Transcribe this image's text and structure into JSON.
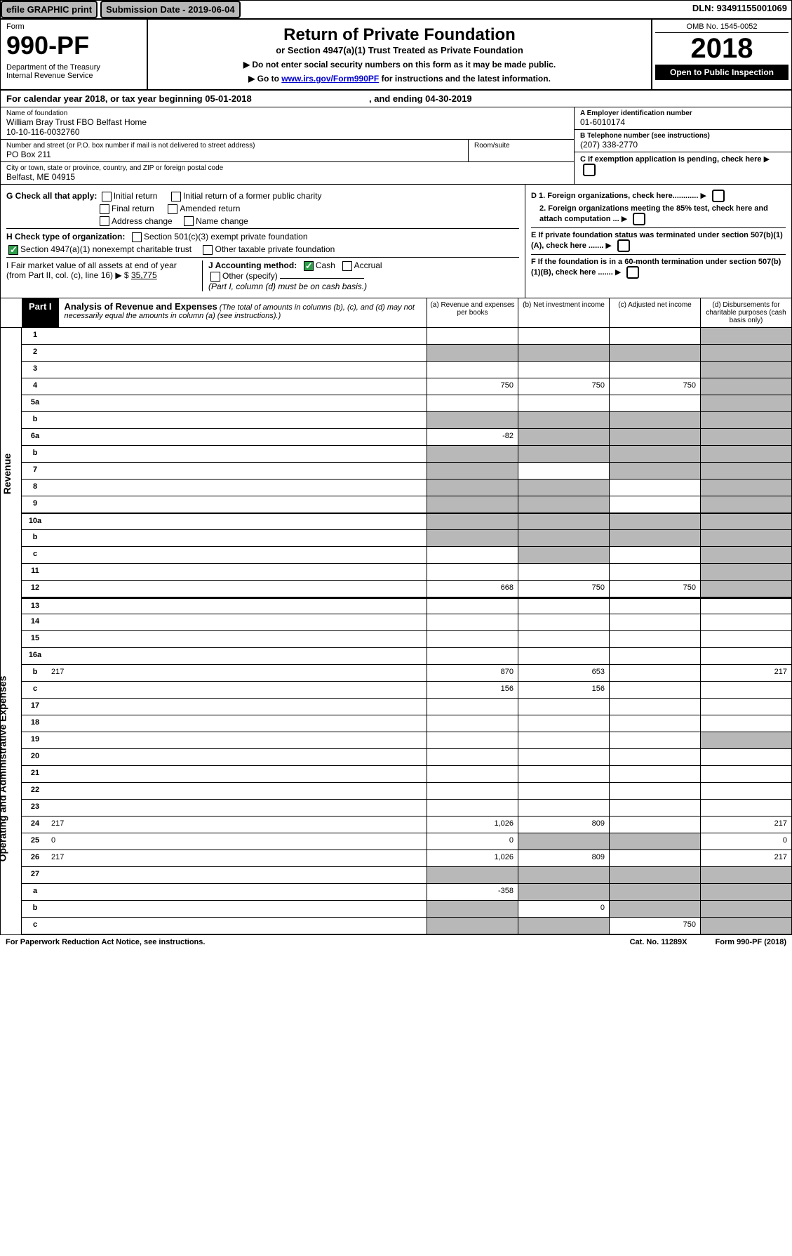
{
  "topbar": {
    "efile": "efile GRAPHIC print",
    "subdate_label": "Submission Date - 2019-06-04",
    "dln": "DLN: 93491155001069"
  },
  "header": {
    "form_label": "Form",
    "form_no": "990-PF",
    "dept": "Department of the Treasury\nInternal Revenue Service",
    "title": "Return of Private Foundation",
    "subtitle": "or Section 4947(a)(1) Trust Treated as Private Foundation",
    "instr1": "▶ Do not enter social security numbers on this form as it may be made public.",
    "instr2_pre": "▶ Go to ",
    "instr2_link": "www.irs.gov/Form990PF",
    "instr2_post": " for instructions and the latest information.",
    "omb": "OMB No. 1545-0052",
    "year": "2018",
    "open": "Open to Public Inspection"
  },
  "calrow": {
    "text_pre": "For calendar year 2018, or tax year beginning ",
    "begin": "05-01-2018",
    "text_mid": ", and ending ",
    "end": "04-30-2019"
  },
  "entity": {
    "name_lbl": "Name of foundation",
    "name": "William Bray Trust FBO Belfast Home\n10-10-116-0032760",
    "addr_lbl": "Number and street (or P.O. box number if mail is not delivered to street address)",
    "addr": "PO Box 211",
    "room_lbl": "Room/suite",
    "city_lbl": "City or town, state or province, country, and ZIP or foreign postal code",
    "city": "Belfast, ME  04915",
    "ein_lbl": "A Employer identification number",
    "ein": "01-6010174",
    "tel_lbl": "B Telephone number (see instructions)",
    "tel": "(207) 338-2770",
    "c_lbl": "C If exemption application is pending, check here"
  },
  "checks": {
    "g_lbl": "G Check all that apply:",
    "g_opts": [
      "Initial return",
      "Initial return of a former public charity",
      "Final return",
      "Amended return",
      "Address change",
      "Name change"
    ],
    "h_lbl": "H Check type of organization:",
    "h_opt1": "Section 501(c)(3) exempt private foundation",
    "h_opt2": "Section 4947(a)(1) nonexempt charitable trust",
    "h_opt3": "Other taxable private foundation",
    "i_lbl": "I Fair market value of all assets at end of year (from Part II, col. (c), line 16) ▶ $",
    "i_val": "35,775",
    "j_lbl": "J Accounting method:",
    "j_cash": "Cash",
    "j_accr": "Accrual",
    "j_other": "Other (specify)",
    "j_note": "(Part I, column (d) must be on cash basis.)",
    "d1": "D 1. Foreign organizations, check here............",
    "d2": "2. Foreign organizations meeting the 85% test, check here and attach computation ...",
    "e": "E  If private foundation status was terminated under section 507(b)(1)(A), check here .......",
    "f": "F  If the foundation is in a 60-month termination under section 507(b)(1)(B), check here .......",
    "arrow": "▶"
  },
  "part1": {
    "label": "Part I",
    "title": "Analysis of Revenue and Expenses",
    "subtitle": "(The total of amounts in columns (b), (c), and (d) may not necessarily equal the amounts in column (a) (see instructions).)",
    "cols": {
      "a": "(a)   Revenue and expenses per books",
      "b": "(b)  Net investment income",
      "c": "(c)  Adjusted net income",
      "d": "(d)  Disbursements for charitable purposes (cash basis only)"
    }
  },
  "sidelabels": {
    "rev": "Revenue",
    "exp": "Operating and Administrative Expenses"
  },
  "rows": [
    {
      "n": "1",
      "d": "",
      "a": "",
      "b": "",
      "c": "",
      "grey": [
        "d"
      ]
    },
    {
      "n": "2",
      "d": "",
      "a": "",
      "b": "",
      "c": "",
      "grey": [
        "a",
        "b",
        "c",
        "d"
      ]
    },
    {
      "n": "3",
      "d": "",
      "a": "",
      "b": "",
      "c": "",
      "grey": [
        "d"
      ]
    },
    {
      "n": "4",
      "d": "",
      "a": "750",
      "b": "750",
      "c": "750",
      "grey": [
        "d"
      ]
    },
    {
      "n": "5a",
      "d": "",
      "a": "",
      "b": "",
      "c": "",
      "grey": [
        "d"
      ]
    },
    {
      "n": "b",
      "d": "",
      "a": "",
      "b": "",
      "c": "",
      "grey": [
        "a",
        "b",
        "c",
        "d"
      ]
    },
    {
      "n": "6a",
      "d": "",
      "a": "-82",
      "b": "",
      "c": "",
      "grey": [
        "b",
        "c",
        "d"
      ]
    },
    {
      "n": "b",
      "d": "",
      "a": "",
      "b": "",
      "c": "",
      "grey": [
        "a",
        "b",
        "c",
        "d"
      ]
    },
    {
      "n": "7",
      "d": "",
      "a": "",
      "b": "",
      "c": "",
      "grey": [
        "a",
        "c",
        "d"
      ]
    },
    {
      "n": "8",
      "d": "",
      "a": "",
      "b": "",
      "c": "",
      "grey": [
        "a",
        "b",
        "d"
      ]
    },
    {
      "n": "9",
      "d": "",
      "a": "",
      "b": "",
      "c": "",
      "grey": [
        "a",
        "b",
        "d"
      ]
    },
    {
      "n": "10a",
      "d": "",
      "a": "",
      "b": "",
      "c": "",
      "grey": [
        "a",
        "b",
        "c",
        "d"
      ]
    },
    {
      "n": "b",
      "d": "",
      "a": "",
      "b": "",
      "c": "",
      "grey": [
        "a",
        "b",
        "c",
        "d"
      ]
    },
    {
      "n": "c",
      "d": "",
      "a": "",
      "b": "",
      "c": "",
      "grey": [
        "b",
        "d"
      ]
    },
    {
      "n": "11",
      "d": "",
      "a": "",
      "b": "",
      "c": "",
      "grey": [
        "d"
      ]
    },
    {
      "n": "12",
      "d": "",
      "a": "668",
      "b": "750",
      "c": "750",
      "grey": [
        "d"
      ]
    },
    {
      "n": "13",
      "d": "",
      "a": "",
      "b": "",
      "c": ""
    },
    {
      "n": "14",
      "d": "",
      "a": "",
      "b": "",
      "c": ""
    },
    {
      "n": "15",
      "d": "",
      "a": "",
      "b": "",
      "c": ""
    },
    {
      "n": "16a",
      "d": "",
      "a": "",
      "b": "",
      "c": ""
    },
    {
      "n": "b",
      "d": "217",
      "a": "870",
      "b": "653",
      "c": ""
    },
    {
      "n": "c",
      "d": "",
      "a": "156",
      "b": "156",
      "c": ""
    },
    {
      "n": "17",
      "d": "",
      "a": "",
      "b": "",
      "c": ""
    },
    {
      "n": "18",
      "d": "",
      "a": "",
      "b": "",
      "c": ""
    },
    {
      "n": "19",
      "d": "",
      "a": "",
      "b": "",
      "c": "",
      "grey": [
        "d"
      ]
    },
    {
      "n": "20",
      "d": "",
      "a": "",
      "b": "",
      "c": ""
    },
    {
      "n": "21",
      "d": "",
      "a": "",
      "b": "",
      "c": ""
    },
    {
      "n": "22",
      "d": "",
      "a": "",
      "b": "",
      "c": ""
    },
    {
      "n": "23",
      "d": "",
      "a": "",
      "b": "",
      "c": ""
    },
    {
      "n": "24",
      "d": "217",
      "a": "1,026",
      "b": "809",
      "c": ""
    },
    {
      "n": "25",
      "d": "0",
      "a": "0",
      "b": "",
      "c": "",
      "grey": [
        "b",
        "c"
      ]
    },
    {
      "n": "26",
      "d": "217",
      "a": "1,026",
      "b": "809",
      "c": ""
    },
    {
      "n": "27",
      "d": "",
      "a": "",
      "b": "",
      "c": "",
      "grey": [
        "a",
        "b",
        "c",
        "d"
      ]
    },
    {
      "n": "a",
      "d": "",
      "a": "-358",
      "b": "",
      "c": "",
      "grey": [
        "b",
        "c",
        "d"
      ]
    },
    {
      "n": "b",
      "d": "",
      "a": "",
      "b": "0",
      "c": "",
      "grey": [
        "a",
        "c",
        "d"
      ]
    },
    {
      "n": "c",
      "d": "",
      "a": "",
      "b": "",
      "c": "750",
      "grey": [
        "a",
        "b",
        "d"
      ]
    }
  ],
  "footer": {
    "left": "For Paperwork Reduction Act Notice, see instructions.",
    "mid": "Cat. No. 11289X",
    "right": "Form 990-PF (2018)"
  },
  "colors": {
    "grey": "#b8b8b8",
    "green": "#2e9e4a",
    "link": "#0000cc"
  }
}
